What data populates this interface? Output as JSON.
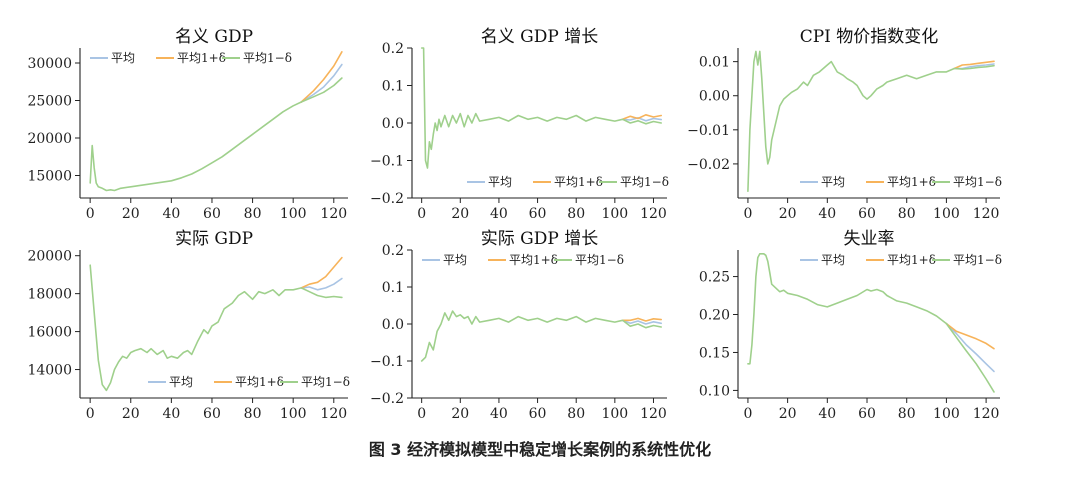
{
  "figure": {
    "caption": "图 3  经济模拟模型中稳定增长案例的系统性优化",
    "series_colors": {
      "平均": "#a9c4e4",
      "平均1+δ": "#f7b35a",
      "平均1−δ": "#9fd08c"
    }
  },
  "chart_data": [
    {
      "id": "nominal-gdp",
      "type": "line",
      "title": "名义 GDP",
      "xlabel": "",
      "ylabel": "",
      "xlim": [
        -5,
        127
      ],
      "ylim": [
        12000,
        32000
      ],
      "xticks": [
        0,
        20,
        40,
        60,
        80,
        100,
        120
      ],
      "yticks": [
        15000,
        20000,
        25000,
        30000
      ],
      "ytick_labels": [
        "15000",
        "20000",
        "25000",
        "30000"
      ],
      "legend_position": "top-left",
      "common": {
        "x": [
          0,
          1,
          2,
          3,
          4,
          6,
          8,
          10,
          12,
          15,
          20,
          25,
          30,
          35,
          40,
          45,
          50,
          55,
          60,
          65,
          70,
          75,
          80,
          85,
          90,
          95,
          100,
          104
        ],
        "y": [
          14000,
          19000,
          16000,
          14000,
          13500,
          13300,
          13000,
          13100,
          13000,
          13300,
          13500,
          13700,
          13900,
          14100,
          14300,
          14700,
          15200,
          15900,
          16700,
          17500,
          18500,
          19500,
          20500,
          21500,
          22500,
          23500,
          24300,
          24800
        ]
      },
      "series": [
        {
          "name": "平均",
          "x": [
            104,
            110,
            115,
            120,
            124
          ],
          "y": [
            24800,
            25800,
            26800,
            28300,
            29800
          ]
        },
        {
          "name": "平均1+δ",
          "x": [
            104,
            110,
            115,
            120,
            124
          ],
          "y": [
            24800,
            26300,
            27800,
            29600,
            31500
          ]
        },
        {
          "name": "平均1−δ",
          "x": [
            104,
            110,
            115,
            120,
            124
          ],
          "y": [
            24800,
            25500,
            26100,
            27000,
            28000
          ]
        }
      ]
    },
    {
      "id": "nominal-gdp-growth",
      "type": "line",
      "title": "名义 GDP 增长",
      "xlabel": "",
      "ylabel": "",
      "xlim": [
        -5,
        127
      ],
      "ylim": [
        -0.2,
        0.2
      ],
      "xticks": [
        0,
        20,
        40,
        60,
        80,
        100,
        120
      ],
      "yticks": [
        -0.2,
        -0.1,
        0.0,
        0.1,
        0.2
      ],
      "ytick_labels": [
        "−0.2",
        "−0.1",
        "0.0",
        "0.1",
        "0.2"
      ],
      "legend_position": "bottom-right",
      "common": {
        "x": [
          0,
          1,
          2,
          3,
          4,
          5,
          6,
          7,
          8,
          9,
          10,
          12,
          14,
          16,
          18,
          20,
          22,
          24,
          26,
          28,
          30,
          35,
          40,
          45,
          50,
          55,
          60,
          65,
          70,
          75,
          80,
          85,
          90,
          95,
          100,
          104
        ],
        "y": [
          0.2,
          0.2,
          -0.1,
          -0.12,
          -0.05,
          -0.07,
          -0.03,
          0.0,
          -0.02,
          0.01,
          -0.01,
          0.02,
          -0.01,
          0.02,
          0.0,
          0.025,
          -0.01,
          0.02,
          0.0,
          0.025,
          0.005,
          0.01,
          0.015,
          0.005,
          0.02,
          0.01,
          0.015,
          0.005,
          0.015,
          0.01,
          0.02,
          0.005,
          0.015,
          0.01,
          0.005,
          0.01
        ]
      },
      "series": [
        {
          "name": "平均",
          "x": [
            104,
            108,
            112,
            116,
            120,
            124
          ],
          "y": [
            0.01,
            0.008,
            0.014,
            0.006,
            0.012,
            0.009
          ]
        },
        {
          "name": "平均1+δ",
          "x": [
            104,
            108,
            112,
            116,
            120,
            124
          ],
          "y": [
            0.01,
            0.018,
            0.012,
            0.022,
            0.016,
            0.02
          ]
        },
        {
          "name": "平均1−δ",
          "x": [
            104,
            108,
            112,
            116,
            120,
            124
          ],
          "y": [
            0.01,
            0.0,
            0.006,
            -0.002,
            0.004,
            0.0
          ]
        }
      ]
    },
    {
      "id": "cpi-change",
      "type": "line",
      "title": "CPI 物价指数变化",
      "xlabel": "",
      "ylabel": "",
      "xlim": [
        -5,
        127
      ],
      "ylim": [
        -0.03,
        0.014
      ],
      "xticks": [
        0,
        20,
        40,
        60,
        80,
        100,
        120
      ],
      "yticks": [
        -0.02,
        -0.01,
        0.0,
        0.01
      ],
      "ytick_labels": [
        "−0.02",
        "−0.01",
        "0.00",
        "0.01"
      ],
      "legend_position": "bottom-right",
      "common": {
        "x": [
          0,
          1,
          2,
          3,
          4,
          5,
          6,
          7,
          8,
          9,
          10,
          11,
          12,
          14,
          16,
          18,
          20,
          22,
          25,
          28,
          30,
          33,
          36,
          40,
          42,
          45,
          48,
          50,
          53,
          55,
          58,
          60,
          62,
          65,
          68,
          70,
          75,
          80,
          85,
          90,
          95,
          100,
          104
        ],
        "y": [
          -0.028,
          -0.01,
          0.0,
          0.01,
          0.013,
          0.009,
          0.013,
          0.005,
          -0.005,
          -0.015,
          -0.02,
          -0.018,
          -0.013,
          -0.008,
          -0.003,
          -0.001,
          0.0,
          0.001,
          0.002,
          0.004,
          0.003,
          0.006,
          0.007,
          0.009,
          0.01,
          0.007,
          0.006,
          0.005,
          0.004,
          0.003,
          0.0,
          -0.001,
          0.0,
          0.002,
          0.003,
          0.004,
          0.005,
          0.006,
          0.005,
          0.006,
          0.007,
          0.007,
          0.008
        ]
      },
      "series": [
        {
          "name": "平均",
          "x": [
            104,
            108,
            112,
            116,
            120,
            124
          ],
          "y": [
            0.008,
            0.008,
            0.0085,
            0.0088,
            0.009,
            0.0093
          ]
        },
        {
          "name": "平均1+δ",
          "x": [
            104,
            108,
            112,
            116,
            120,
            124
          ],
          "y": [
            0.008,
            0.009,
            0.0092,
            0.0095,
            0.0098,
            0.0101
          ]
        },
        {
          "name": "平均1−δ",
          "x": [
            104,
            108,
            112,
            116,
            120,
            124
          ],
          "y": [
            0.008,
            0.0078,
            0.008,
            0.0083,
            0.0085,
            0.0088
          ]
        }
      ]
    },
    {
      "id": "real-gdp",
      "type": "line",
      "title": "实际 GDP",
      "xlabel": "",
      "ylabel": "",
      "xlim": [
        -5,
        127
      ],
      "ylim": [
        12500,
        20300
      ],
      "xticks": [
        0,
        20,
        40,
        60,
        80,
        100,
        120
      ],
      "yticks": [
        14000,
        16000,
        18000,
        20000
      ],
      "ytick_labels": [
        "14000",
        "16000",
        "18000",
        "20000"
      ],
      "legend_position": "bottom-right",
      "common": {
        "x": [
          0,
          2,
          4,
          6,
          8,
          10,
          12,
          14,
          16,
          18,
          20,
          22,
          25,
          28,
          30,
          33,
          36,
          38,
          40,
          43,
          46,
          48,
          50,
          53,
          56,
          58,
          60,
          63,
          66,
          70,
          73,
          76,
          80,
          83,
          86,
          90,
          93,
          96,
          100,
          104
        ],
        "y": [
          19500,
          17000,
          14500,
          13200,
          12900,
          13300,
          14000,
          14400,
          14700,
          14600,
          14900,
          15000,
          15100,
          14900,
          15100,
          14800,
          15000,
          14600,
          14700,
          14600,
          14900,
          15000,
          14800,
          15500,
          16100,
          15900,
          16300,
          16500,
          17200,
          17500,
          17900,
          18100,
          17700,
          18100,
          18000,
          18200,
          17900,
          18200,
          18200,
          18300
        ]
      },
      "series": [
        {
          "name": "平均",
          "x": [
            104,
            108,
            112,
            116,
            120,
            124
          ],
          "y": [
            18300,
            18350,
            18200,
            18300,
            18500,
            18800
          ]
        },
        {
          "name": "平均1+δ",
          "x": [
            104,
            108,
            112,
            116,
            120,
            124
          ],
          "y": [
            18300,
            18500,
            18600,
            18900,
            19400,
            19900
          ]
        },
        {
          "name": "平均1−δ",
          "x": [
            104,
            108,
            112,
            116,
            120,
            124
          ],
          "y": [
            18300,
            18100,
            17900,
            17800,
            17850,
            17800
          ]
        }
      ]
    },
    {
      "id": "real-gdp-growth",
      "type": "line",
      "title": "实际 GDP 增长",
      "xlabel": "",
      "ylabel": "",
      "xlim": [
        -5,
        127
      ],
      "ylim": [
        -0.2,
        0.2
      ],
      "xticks": [
        0,
        20,
        40,
        60,
        80,
        100,
        120
      ],
      "yticks": [
        -0.2,
        -0.1,
        0.0,
        0.1,
        0.2
      ],
      "ytick_labels": [
        "−0.2",
        "−0.1",
        "0.0",
        "0.1",
        "0.2"
      ],
      "legend_position": "top-left",
      "common": {
        "x": [
          0,
          2,
          4,
          6,
          8,
          10,
          12,
          14,
          16,
          18,
          20,
          22,
          24,
          26,
          28,
          30,
          35,
          40,
          45,
          50,
          55,
          60,
          65,
          70,
          75,
          80,
          85,
          90,
          95,
          100,
          104
        ],
        "y": [
          -0.1,
          -0.09,
          -0.05,
          -0.07,
          -0.02,
          0.0,
          0.03,
          0.01,
          0.035,
          0.02,
          0.025,
          0.015,
          0.02,
          0.0,
          0.02,
          0.005,
          0.01,
          0.015,
          0.005,
          0.02,
          0.01,
          0.015,
          0.005,
          0.015,
          0.01,
          0.02,
          0.005,
          0.015,
          0.01,
          0.005,
          0.01
        ]
      },
      "series": [
        {
          "name": "平均",
          "x": [
            104,
            108,
            112,
            116,
            120,
            124
          ],
          "y": [
            0.01,
            0.002,
            0.008,
            0.0,
            0.006,
            0.002
          ]
        },
        {
          "name": "平均1+δ",
          "x": [
            104,
            108,
            112,
            116,
            120,
            124
          ],
          "y": [
            0.01,
            0.01,
            0.015,
            0.008,
            0.014,
            0.012
          ]
        },
        {
          "name": "平均1−δ",
          "x": [
            104,
            108,
            112,
            116,
            120,
            124
          ],
          "y": [
            0.01,
            -0.006,
            0.0,
            -0.01,
            -0.004,
            -0.008
          ]
        }
      ]
    },
    {
      "id": "unemployment-rate",
      "type": "line",
      "title": "失业率",
      "xlabel": "",
      "ylabel": "",
      "xlim": [
        -5,
        127
      ],
      "ylim": [
        0.09,
        0.285
      ],
      "xticks": [
        0,
        20,
        40,
        60,
        80,
        100,
        120
      ],
      "yticks": [
        0.1,
        0.15,
        0.2,
        0.25
      ],
      "ytick_labels": [
        "0.10",
        "0.15",
        "0.20",
        "0.25"
      ],
      "legend_position": "top-right",
      "common": {
        "x": [
          0,
          1,
          2,
          3,
          4,
          5,
          6,
          7,
          8,
          9,
          10,
          11,
          12,
          14,
          16,
          18,
          20,
          25,
          30,
          35,
          40,
          45,
          50,
          55,
          60,
          62,
          65,
          68,
          70,
          75,
          80,
          85,
          90,
          95,
          100
        ],
        "y": [
          0.135,
          0.135,
          0.16,
          0.2,
          0.25,
          0.275,
          0.28,
          0.28,
          0.28,
          0.278,
          0.27,
          0.255,
          0.24,
          0.235,
          0.23,
          0.232,
          0.228,
          0.225,
          0.22,
          0.213,
          0.21,
          0.215,
          0.22,
          0.225,
          0.233,
          0.231,
          0.233,
          0.23,
          0.225,
          0.218,
          0.215,
          0.21,
          0.205,
          0.198,
          0.188
        ]
      },
      "series": [
        {
          "name": "平均",
          "x": [
            100,
            105,
            110,
            115,
            120,
            124
          ],
          "y": [
            0.188,
            0.175,
            0.16,
            0.148,
            0.135,
            0.125
          ]
        },
        {
          "name": "平均1+δ",
          "x": [
            100,
            105,
            110,
            115,
            120,
            124
          ],
          "y": [
            0.188,
            0.178,
            0.173,
            0.168,
            0.162,
            0.155
          ]
        },
        {
          "name": "平均1−δ",
          "x": [
            100,
            105,
            110,
            115,
            120,
            124
          ],
          "y": [
            0.188,
            0.17,
            0.152,
            0.135,
            0.115,
            0.098
          ]
        }
      ]
    }
  ]
}
